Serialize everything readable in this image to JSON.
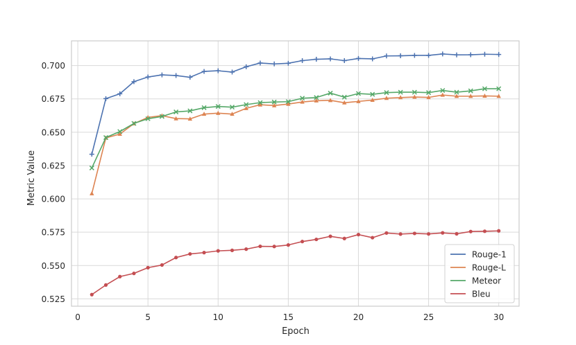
{
  "colors": {
    "rouge1": "#4c72b0",
    "rougeL": "#dd8452",
    "meteor": "#55a868",
    "bleu": "#c44e52",
    "grid": "#d9d9d9",
    "axis": "#cccccc"
  },
  "chart_data": {
    "type": "line",
    "xlabel": "Epoch",
    "ylabel": "Metric Value",
    "xlim": [
      -0.45,
      31.45
    ],
    "ylim": [
      0.5195,
      0.7185
    ],
    "xticks": [
      0,
      5,
      10,
      15,
      20,
      25,
      30
    ],
    "yticks": [
      0.525,
      0.55,
      0.575,
      0.6,
      0.625,
      0.65,
      0.675,
      0.7
    ],
    "ytick_labels": [
      "0.525",
      "0.550",
      "0.575",
      "0.600",
      "0.625",
      "0.650",
      "0.675",
      "0.700"
    ],
    "grid": true,
    "legend_position": "bottom-right",
    "x": [
      1,
      2,
      3,
      4,
      5,
      6,
      7,
      8,
      9,
      10,
      11,
      12,
      13,
      14,
      15,
      16,
      17,
      18,
      19,
      20,
      21,
      22,
      23,
      24,
      25,
      26,
      27,
      28,
      29,
      30
    ],
    "series": [
      {
        "name": "Rouge-1",
        "color_key": "rouge1",
        "marker": "plus",
        "values": [
          0.6335,
          0.6752,
          0.6788,
          0.6879,
          0.6914,
          0.693,
          0.6925,
          0.6912,
          0.6956,
          0.6961,
          0.6951,
          0.6991,
          0.7019,
          0.7012,
          0.7017,
          0.7037,
          0.7047,
          0.705,
          0.7037,
          0.7053,
          0.705,
          0.7072,
          0.7073,
          0.7076,
          0.7076,
          0.7087,
          0.708,
          0.7081,
          0.7085,
          0.7083
        ]
      },
      {
        "name": "Rouge-L",
        "color_key": "rougeL",
        "marker": "triangle",
        "values": [
          0.604,
          0.6457,
          0.6486,
          0.6564,
          0.6611,
          0.6624,
          0.6602,
          0.66,
          0.6636,
          0.6643,
          0.6636,
          0.6679,
          0.6706,
          0.67,
          0.6711,
          0.6727,
          0.6736,
          0.6739,
          0.6721,
          0.6731,
          0.6741,
          0.6755,
          0.676,
          0.6764,
          0.6761,
          0.6779,
          0.677,
          0.677,
          0.6772,
          0.677
        ]
      },
      {
        "name": "Meteor",
        "color_key": "meteor",
        "marker": "x",
        "values": [
          0.6232,
          0.646,
          0.6505,
          0.6566,
          0.6601,
          0.6618,
          0.6652,
          0.666,
          0.6684,
          0.6693,
          0.6688,
          0.6707,
          0.6722,
          0.6726,
          0.6729,
          0.6755,
          0.676,
          0.6793,
          0.6763,
          0.679,
          0.6784,
          0.6797,
          0.68,
          0.68,
          0.6797,
          0.6813,
          0.68,
          0.681,
          0.6826,
          0.6826
        ]
      },
      {
        "name": "Bleu",
        "color_key": "bleu",
        "marker": "dot",
        "values": [
          0.5282,
          0.5354,
          0.5417,
          0.5441,
          0.5484,
          0.5504,
          0.556,
          0.5587,
          0.5597,
          0.561,
          0.5614,
          0.5623,
          0.5644,
          0.5643,
          0.5654,
          0.568,
          0.5696,
          0.5719,
          0.5703,
          0.5732,
          0.5709,
          0.5744,
          0.5736,
          0.5741,
          0.5737,
          0.5745,
          0.5738,
          0.5755,
          0.5757,
          0.576
        ]
      }
    ]
  }
}
